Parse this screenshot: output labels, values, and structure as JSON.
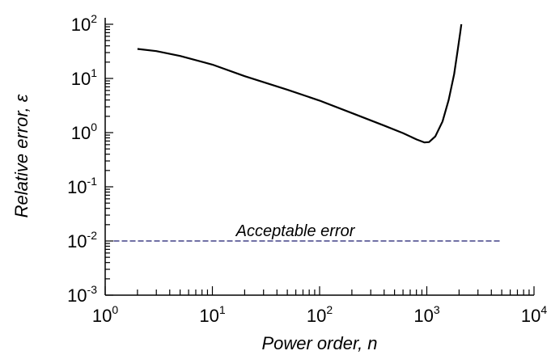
{
  "chart_data": {
    "type": "line",
    "x_scale": "log",
    "y_scale": "log",
    "xlabel": "Power order, n",
    "ylabel": "Relative error, ε",
    "xlim": [
      1,
      10000
    ],
    "ylim": [
      0.001,
      100
    ],
    "grid": false,
    "x_ticks": [
      {
        "base": "10",
        "exp": "0",
        "value": 1
      },
      {
        "base": "10",
        "exp": "1",
        "value": 10
      },
      {
        "base": "10",
        "exp": "2",
        "value": 100
      },
      {
        "base": "10",
        "exp": "3",
        "value": 1000
      },
      {
        "base": "10",
        "exp": "4",
        "value": 10000
      }
    ],
    "y_ticks": [
      {
        "base": "10",
        "exp": "-3",
        "value": 0.001
      },
      {
        "base": "10",
        "exp": "-2",
        "value": 0.01
      },
      {
        "base": "10",
        "exp": "-1",
        "value": 0.1
      },
      {
        "base": "10",
        "exp": "0",
        "value": 1
      },
      {
        "base": "10",
        "exp": "1",
        "value": 10
      },
      {
        "base": "10",
        "exp": "2",
        "value": 100
      }
    ],
    "series": [
      {
        "color": "#000000",
        "style": "solid",
        "x": [
          2,
          3,
          5,
          10,
          20,
          50,
          100,
          200,
          400,
          600,
          800,
          950,
          1050,
          1200,
          1400,
          1600,
          1800,
          1950,
          2050,
          2100
        ],
        "y": [
          35,
          32,
          26,
          18,
          11,
          6.2,
          3.9,
          2.3,
          1.35,
          0.98,
          0.75,
          0.66,
          0.67,
          0.85,
          1.6,
          4.0,
          12,
          35,
          70,
          100
        ]
      }
    ],
    "reference_lines": [
      {
        "label": "Acceptable error",
        "y": 0.01,
        "x_range": [
          1.2,
          5000
        ],
        "color": "#1a1a6e",
        "style": "dashed"
      }
    ]
  }
}
